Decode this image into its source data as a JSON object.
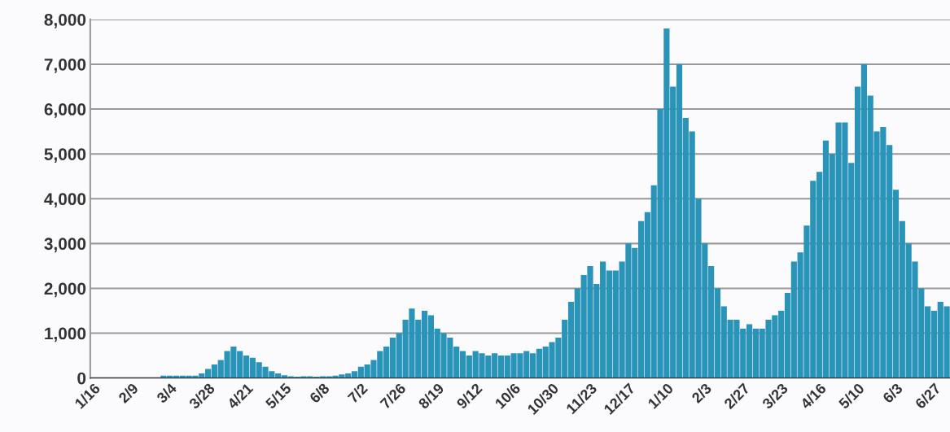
{
  "chart_data": {
    "type": "bar",
    "categories": [
      "1/16",
      null,
      null,
      null,
      null,
      null,
      "2/9",
      null,
      null,
      null,
      null,
      null,
      "3/4",
      null,
      null,
      null,
      null,
      null,
      "3/28",
      null,
      null,
      null,
      null,
      null,
      "4/21",
      null,
      null,
      null,
      null,
      null,
      "5/15",
      null,
      null,
      null,
      null,
      null,
      "6/8",
      null,
      null,
      null,
      null,
      null,
      "7/2",
      null,
      null,
      null,
      null,
      null,
      "7/26",
      null,
      null,
      null,
      null,
      null,
      "8/19",
      null,
      null,
      null,
      null,
      null,
      "9/12",
      null,
      null,
      null,
      null,
      null,
      "10/6",
      null,
      null,
      null,
      null,
      null,
      "10/30",
      null,
      null,
      null,
      null,
      null,
      "11/23",
      null,
      null,
      null,
      null,
      null,
      "12/17",
      null,
      null,
      null,
      null,
      null,
      "1/10",
      null,
      null,
      null,
      null,
      null,
      "2/3",
      null,
      null,
      null,
      null,
      null,
      "2/27",
      null,
      null,
      null,
      null,
      null,
      "3/23",
      null,
      null,
      null,
      null,
      null,
      "4/16",
      null,
      null,
      null,
      null,
      null,
      "5/10",
      null,
      null,
      null,
      null,
      null,
      "6/3",
      null,
      null,
      null,
      null,
      null,
      "6/27",
      null,
      null
    ],
    "values": [
      0,
      0,
      0,
      0,
      0,
      0,
      0,
      0,
      0,
      0,
      0,
      50,
      50,
      50,
      50,
      50,
      50,
      100,
      200,
      300,
      400,
      600,
      700,
      600,
      500,
      450,
      350,
      250,
      150,
      100,
      60,
      40,
      30,
      40,
      40,
      30,
      40,
      40,
      50,
      80,
      100,
      150,
      250,
      300,
      400,
      600,
      700,
      900,
      1000,
      1300,
      1550,
      1300,
      1500,
      1400,
      1100,
      1000,
      900,
      700,
      600,
      500,
      600,
      550,
      500,
      550,
      500,
      500,
      550,
      550,
      600,
      550,
      650,
      700,
      800,
      900,
      1300,
      1700,
      2000,
      2300,
      2500,
      2100,
      2600,
      2400,
      2400,
      2600,
      3000,
      2900,
      3500,
      3700,
      4300,
      6000,
      7800,
      6500,
      7000,
      5800,
      5500,
      4000,
      3000,
      2500,
      2000,
      1600,
      1300,
      1300,
      1100,
      1200,
      1100,
      1100,
      1300,
      1400,
      1500,
      1900,
      2600,
      2800,
      3400,
      4400,
      4600,
      5300,
      5000,
      5700,
      5700,
      4800,
      6500,
      7000,
      6300,
      5500,
      5600,
      5200,
      4200,
      3500,
      3000,
      2600,
      2000,
      1600,
      1500,
      1700,
      1600
    ],
    "color": "#2a93b8",
    "ylim": [
      0,
      8000
    ],
    "yticks": [
      {
        "value": 0,
        "label": "0"
      },
      {
        "value": 1000,
        "label": "1,000"
      },
      {
        "value": 2000,
        "label": "2,000"
      },
      {
        "value": 3000,
        "label": "3,000"
      },
      {
        "value": 4000,
        "label": "4,000"
      },
      {
        "value": 5000,
        "label": "5,000"
      },
      {
        "value": 6000,
        "label": "6,000"
      },
      {
        "value": 7000,
        "label": "7,000"
      },
      {
        "value": 8000,
        "label": "8,000"
      }
    ],
    "grid": "y"
  }
}
